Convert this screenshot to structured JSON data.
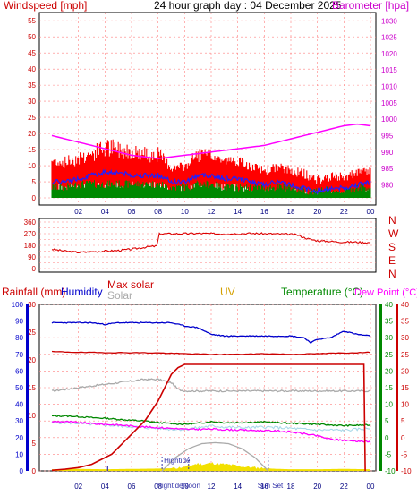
{
  "header": {
    "left_title": "Windspeed [mph]",
    "center_title": "24 hour graph day : 04 December 2025",
    "right_title": "Barometer [hpa]"
  },
  "colors": {
    "wind": "#ff0000",
    "wind_dark": "#b00000",
    "gust_line": "#2020ff",
    "avg_green": "#008800",
    "barometer": "#ff00ff",
    "direction": "#dd0000",
    "rain_axis": "#cc0000",
    "humidity": "#0000cc",
    "max_solar": "#cc0000",
    "solar": "#aaaaaa",
    "uv": "#d4a000",
    "temperature": "#008800",
    "dewpoint": "#ff00ff",
    "tide_marker": "#3333aa",
    "grid": "#ff8080"
  },
  "chart_data": [
    {
      "type": "line",
      "panel": "wind-barometer",
      "title": "24 hour graph day : 04 December 2025",
      "xlabel": "",
      "ylabel": "Windspeed [mph]",
      "y2label": "Barometer [hpa]",
      "x_tick_labels": [
        "02",
        "04",
        "06",
        "08",
        "10",
        "12",
        "14",
        "16",
        "18",
        "20",
        "22",
        "00"
      ],
      "ylim": [
        0,
        57
      ],
      "y_ticks": [
        0,
        5,
        10,
        15,
        20,
        25,
        30,
        35,
        40,
        45,
        50,
        55
      ],
      "y2lim": [
        976,
        1032
      ],
      "y2_ticks": [
        980,
        985,
        990,
        995,
        1000,
        1005,
        1010,
        1015,
        1020,
        1025,
        1030
      ],
      "x_range": [
        0,
        24
      ],
      "grid": true,
      "series": [
        {
          "key": "gust",
          "axis": "y",
          "x": [
            0,
            1,
            2,
            3,
            4,
            5,
            6,
            7,
            8,
            9,
            10,
            11,
            12,
            13,
            14,
            15,
            16,
            17,
            18,
            19,
            20,
            21,
            22,
            23,
            24
          ],
          "values": [
            10,
            9,
            10,
            11,
            12,
            12,
            12,
            11,
            11,
            8,
            8,
            11,
            11,
            10,
            10,
            8,
            7,
            8,
            7,
            6,
            4,
            5,
            5,
            6,
            7
          ]
        },
        {
          "key": "gust_peak",
          "axis": "y",
          "x": [
            0,
            1,
            2,
            3,
            4,
            5,
            6,
            7,
            8,
            9,
            10,
            11,
            12,
            13,
            14,
            15,
            16,
            17,
            18,
            19,
            20,
            21,
            22,
            23,
            24
          ],
          "values": [
            13,
            13,
            15,
            16,
            19,
            18,
            17,
            16,
            16,
            11,
            11,
            16,
            15,
            13,
            13,
            11,
            10,
            11,
            10,
            9,
            7,
            8,
            8,
            9,
            10
          ]
        },
        {
          "key": "avg_blue",
          "axis": "y",
          "x": [
            0,
            1,
            2,
            3,
            4,
            5,
            6,
            7,
            8,
            9,
            10,
            11,
            12,
            13,
            14,
            15,
            16,
            17,
            18,
            19,
            20,
            21,
            22,
            23,
            24
          ],
          "values": [
            5,
            5,
            6,
            7,
            8,
            8,
            7,
            7,
            7,
            5,
            5,
            7,
            7,
            6,
            6,
            5,
            4,
            5,
            4,
            3,
            2,
            3,
            3,
            4,
            5
          ]
        },
        {
          "key": "avg_green",
          "axis": "y",
          "x": [
            0,
            1,
            2,
            3,
            4,
            5,
            6,
            7,
            8,
            9,
            10,
            11,
            12,
            13,
            14,
            15,
            16,
            17,
            18,
            19,
            20,
            21,
            22,
            23,
            24
          ],
          "values": [
            2,
            2,
            3,
            3,
            3,
            3,
            3,
            3,
            3,
            2,
            2,
            3,
            3,
            2,
            2,
            2,
            2,
            2,
            2,
            1,
            1,
            1,
            1,
            2,
            2
          ]
        },
        {
          "key": "barometer",
          "axis": "y2",
          "x": [
            0,
            2,
            4,
            6,
            8,
            10,
            12,
            14,
            16,
            18,
            20,
            22,
            23,
            24
          ],
          "values": [
            995,
            993,
            991,
            989,
            988,
            989,
            990,
            991,
            992,
            994,
            996,
            998,
            998.5,
            998
          ]
        }
      ]
    },
    {
      "type": "line",
      "panel": "wind-direction",
      "ylim": [
        0,
        360
      ],
      "y_ticks": [
        0,
        45,
        90,
        135,
        180,
        225,
        270,
        315,
        360
      ],
      "y_tick_labels": [
        "0",
        "",
        "90",
        "",
        "180",
        "",
        "270",
        "",
        "360"
      ],
      "compass_labels": [
        "N",
        "W",
        "S",
        "E",
        "N"
      ],
      "x_range": [
        0,
        24
      ],
      "series": [
        {
          "key": "direction",
          "x": [
            0,
            1,
            2,
            3,
            4,
            5,
            6,
            7,
            7.9,
            8.1,
            9,
            10,
            11,
            12,
            13,
            14,
            15,
            16,
            17,
            18,
            18.5,
            19,
            19.5,
            20,
            21,
            22,
            23,
            24
          ],
          "values": [
            150,
            135,
            125,
            130,
            135,
            140,
            150,
            165,
            175,
            268,
            270,
            270,
            272,
            270,
            268,
            270,
            272,
            270,
            268,
            265,
            260,
            240,
            225,
            215,
            210,
            205,
            205,
            200
          ]
        }
      ]
    },
    {
      "type": "line",
      "panel": "temperature-rain",
      "legend": [
        "Rainfall (mm)",
        "Humidity",
        "Max solar",
        "Solar",
        "UV",
        "Temperature (°C)",
        "Dew Point (°C)"
      ],
      "x_tick_labels": [
        "02",
        "04",
        "06",
        "08",
        "10",
        "12",
        "14",
        "16",
        "18",
        "20",
        "22",
        "00"
      ],
      "x_range": [
        0,
        24
      ],
      "axes": {
        "humidity": {
          "range": [
            0,
            100
          ],
          "ticks": [
            0,
            10,
            20,
            30,
            40,
            50,
            60,
            70,
            80,
            90,
            100
          ]
        },
        "rain": {
          "range": [
            0,
            30
          ],
          "ticks": [
            0,
            5,
            10,
            15,
            20,
            25,
            30
          ]
        },
        "temp_left": {
          "range": [
            -10,
            40
          ],
          "ticks": [
            -10,
            -5,
            0,
            5,
            10,
            15,
            20,
            25,
            30,
            35,
            40
          ]
        },
        "temp_right": {
          "range": [
            -10,
            40
          ],
          "ticks": [
            -10,
            -5,
            0,
            5,
            10,
            15,
            20,
            25,
            30,
            35,
            40
          ]
        }
      },
      "markers": [
        {
          "label": "Hightide",
          "x": 8.3
        },
        {
          "label": "Noon",
          "x": 10.3
        },
        {
          "label": "Sun Set",
          "x": 16.3
        },
        {
          "label": "",
          "x": 4.2
        }
      ],
      "series": [
        {
          "key": "humidity",
          "axis": "humidity",
          "x": [
            0,
            1,
            2,
            3,
            4,
            5,
            6,
            7,
            8,
            9,
            10,
            11,
            12,
            13,
            14,
            15,
            16,
            17,
            18,
            19,
            19.5,
            20,
            21,
            22,
            23,
            24
          ],
          "values": [
            89,
            89,
            89,
            89,
            88,
            89,
            89,
            89,
            89,
            89,
            87,
            86,
            82,
            81,
            81,
            81,
            81,
            81,
            81,
            80,
            77,
            79,
            80,
            84,
            82,
            81
          ]
        },
        {
          "key": "rain",
          "axis": "temp_right",
          "x": [
            0,
            1,
            2,
            3,
            4,
            4.5,
            5,
            5.5,
            6,
            6.5,
            7,
            7.5,
            8,
            8.5,
            9,
            9.5,
            10,
            12,
            14,
            16,
            18,
            20,
            22,
            23,
            23.5,
            23.6
          ],
          "values": [
            -9.8,
            -9.5,
            -9,
            -8,
            -6,
            -5,
            -3,
            -1,
            1,
            3,
            5,
            8,
            11,
            15,
            19,
            21,
            22,
            22,
            22,
            22,
            22,
            22,
            22,
            22,
            22,
            -10
          ]
        },
        {
          "key": "max_solar_line",
          "axis": "temp_right",
          "x": [
            0,
            2,
            4,
            6,
            8,
            10,
            12,
            14,
            16,
            18,
            20,
            22,
            24
          ],
          "values": [
            25.8,
            25.6,
            25.5,
            25.5,
            25.4,
            25.2,
            25.0,
            25.0,
            25.2,
            25.0,
            25.2,
            25.4,
            25.6
          ]
        },
        {
          "key": "solar",
          "axis": "temp_right",
          "x": [
            0,
            1,
            2,
            3,
            4,
            5,
            6,
            7,
            8,
            9,
            9.5,
            10,
            12,
            14,
            16,
            18,
            20,
            22,
            24
          ],
          "values": [
            14,
            14.5,
            15,
            15.5,
            16,
            16.5,
            17,
            17.5,
            17.5,
            16.5,
            14.5,
            14,
            14,
            14,
            14,
            14,
            14,
            14,
            14
          ]
        },
        {
          "key": "temperature",
          "axis": "temp_right",
          "x": [
            0,
            1,
            2,
            3,
            4,
            5,
            6,
            7,
            8,
            9,
            10,
            11,
            12,
            13,
            14,
            15,
            16,
            17,
            18,
            19,
            20,
            21,
            22,
            23,
            24
          ],
          "values": [
            6.5,
            6.5,
            6.3,
            6,
            5.8,
            5.5,
            5.2,
            5,
            4.5,
            4.2,
            4,
            4.3,
            4.8,
            4.5,
            4.5,
            4.6,
            4.7,
            4.5,
            4.3,
            4.2,
            4,
            3.8,
            3.6,
            3.7,
            3.8
          ]
        },
        {
          "key": "light_blue",
          "axis": "temp_right",
          "x": [
            0,
            1,
            2,
            3,
            4,
            5,
            6,
            7,
            8,
            9,
            10,
            11,
            12,
            13,
            14,
            15,
            16,
            17,
            18,
            19,
            20,
            21,
            22,
            23,
            24
          ],
          "values": [
            4.5,
            4.5,
            4.3,
            4,
            3.8,
            3.5,
            3.3,
            3,
            2.8,
            2.5,
            2.5,
            3,
            3.5,
            3.2,
            3,
            3,
            3.2,
            3,
            2.8,
            2.5,
            2.3,
            2.3,
            2.2,
            2.5,
            2.8
          ]
        },
        {
          "key": "dewpoint",
          "axis": "temp_right",
          "x": [
            0,
            1,
            2,
            3,
            4,
            5,
            6,
            7,
            8,
            9,
            10,
            11,
            12,
            13,
            14,
            15,
            16,
            17,
            18,
            19,
            20,
            21,
            22,
            23,
            24
          ],
          "values": [
            4.8,
            4.8,
            4.5,
            4.2,
            4,
            3.8,
            3.5,
            3.2,
            3,
            2.8,
            2.5,
            2.5,
            2.6,
            2.4,
            2.3,
            2.2,
            2.1,
            2,
            1.7,
            1.2,
            0.5,
            -0.5,
            -0.8,
            -1,
            -1.3
          ]
        },
        {
          "key": "solar_arc",
          "axis": "temp_right",
          "x": [
            8.3,
            9.3,
            10.3,
            11.3,
            12.3,
            13.3,
            14.3,
            15.3,
            16.3
          ],
          "values": [
            -10,
            -6,
            -3.3,
            -1.8,
            -1.5,
            -1.8,
            -3.3,
            -6,
            -10
          ]
        },
        {
          "key": "uv_fill",
          "axis": "temp_right",
          "x": [
            0,
            2,
            4,
            6,
            8,
            9,
            10,
            10.5,
            11,
            11.5,
            12,
            12.5,
            13,
            13.5,
            14,
            15,
            16,
            17,
            18,
            20,
            22,
            24
          ],
          "values": [
            -9.5,
            -9.4,
            -9.5,
            -9.4,
            -9.3,
            -9.2,
            -8.8,
            -8.3,
            -7.8,
            -8,
            -7.6,
            -7.9,
            -8,
            -8.2,
            -8.5,
            -8.9,
            -9.2,
            -9.4,
            -9.5,
            -9.5,
            -9.4,
            -9.5
          ]
        }
      ]
    }
  ],
  "labels": {
    "rainfall": "Rainfall (mm)",
    "humidity": "Humidity",
    "max_solar": "Max solar",
    "solar": "Solar",
    "uv": "UV",
    "temperature": "Temperature (°C)",
    "dewpoint": "Dew Point (°C)",
    "hightide": "Hightide",
    "noon": "Noon",
    "sunset": "Sun Set"
  }
}
